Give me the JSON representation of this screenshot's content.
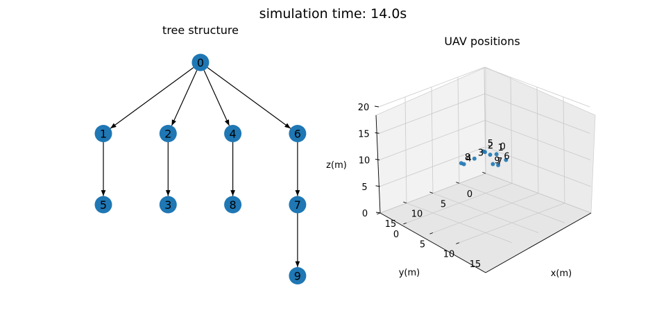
{
  "suptitle": "simulation time: 14.0s",
  "tree": {
    "title": "tree structure",
    "node_color": "#1f77b4",
    "nodes": [
      "0",
      "1",
      "2",
      "4",
      "6",
      "5",
      "3",
      "8",
      "7",
      "9"
    ],
    "edges": [
      [
        "0",
        "1"
      ],
      [
        "0",
        "2"
      ],
      [
        "0",
        "4"
      ],
      [
        "0",
        "6"
      ],
      [
        "1",
        "5"
      ],
      [
        "2",
        "3"
      ],
      [
        "4",
        "8"
      ],
      [
        "6",
        "7"
      ],
      [
        "7",
        "9"
      ]
    ]
  },
  "chart_data": {
    "type": "scatter",
    "title": "UAV positions",
    "xlabel": "x(m)",
    "ylabel": "y(m)",
    "zlabel": "z(m)",
    "xlim": [
      0,
      20
    ],
    "ylim": [
      0,
      20
    ],
    "zlim": [
      0,
      20
    ],
    "xticks": [
      "0",
      "5",
      "10",
      "15"
    ],
    "yticks": [
      "0",
      "5",
      "10",
      "15"
    ],
    "zticks": [
      "0",
      "5",
      "10",
      "15",
      "20"
    ],
    "grid": true,
    "point_color": "#1f77b4",
    "points": [
      {
        "label": "0",
        "x": 10.2,
        "y": 8.0,
        "z": 10.4
      },
      {
        "label": "1",
        "x": 10.0,
        "y": 9.0,
        "z": 10.6
      },
      {
        "label": "2",
        "x": 8.0,
        "y": 8.0,
        "z": 10.0
      },
      {
        "label": "3",
        "x": 8.0,
        "y": 10.0,
        "z": 9.5
      },
      {
        "label": "4",
        "x": 8.0,
        "y": 12.0,
        "z": 9.2
      },
      {
        "label": "5",
        "x": 7.7,
        "y": 8.0,
        "z": 10.0
      },
      {
        "label": "6",
        "x": 12.0,
        "y": 8.0,
        "z": 10.0
      },
      {
        "label": "7",
        "x": 11.5,
        "y": 9.0,
        "z": 9.2
      },
      {
        "label": "8",
        "x": 7.5,
        "y": 12.0,
        "z": 9.2
      },
      {
        "label": "9",
        "x": 11.0,
        "y": 9.5,
        "z": 9.4
      }
    ]
  }
}
